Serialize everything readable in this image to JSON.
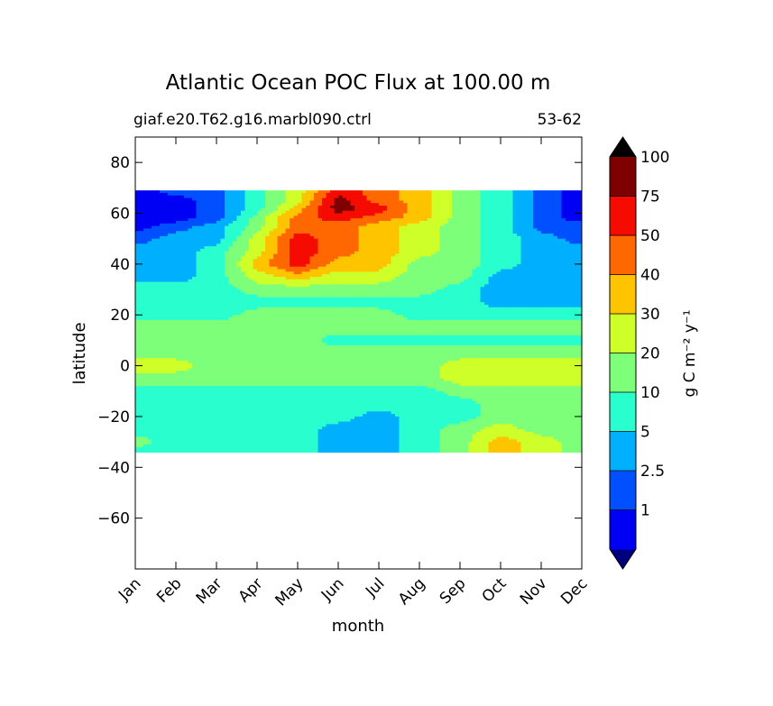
{
  "chart_data": {
    "type": "heatmap",
    "title": "Atlantic Ocean POC Flux at 100.00 m",
    "subtitle_left": "giaf.e20.T62.g16.marbl090.ctrl",
    "subtitle_right": "53-62",
    "xlabel": "month",
    "ylabel": "latitude",
    "x_ticks": [
      "Jan",
      "Feb",
      "Mar",
      "Apr",
      "May",
      "Jun",
      "Jul",
      "Aug",
      "Sep",
      "Oct",
      "Nov",
      "Dec"
    ],
    "x_range": [
      0,
      11
    ],
    "y_ticks": [
      80,
      60,
      40,
      20,
      0,
      -20,
      -40,
      -60
    ],
    "y_range": [
      -80,
      90
    ],
    "data_lat_range": [
      -34,
      69
    ],
    "colorbar": {
      "label": "g C m⁻² y⁻¹",
      "boundaries": [
        0.5,
        1,
        2.5,
        5,
        10,
        20,
        30,
        40,
        50,
        75,
        100,
        125
      ],
      "tick_labels": [
        "1",
        "2.5",
        "5",
        "10",
        "20",
        "30",
        "40",
        "50",
        "75",
        "100"
      ],
      "extend": "both"
    },
    "levels": [
      {
        "name": "lt-1",
        "color": "#00007f"
      },
      {
        "name": "1-2.5",
        "color": "#0000f5"
      },
      {
        "name": "2.5-5",
        "color": "#0050ff"
      },
      {
        "name": "5-10",
        "color": "#00b0ff"
      },
      {
        "name": "10-20",
        "color": "#29ffce"
      },
      {
        "name": "20-30",
        "color": "#7dff7a"
      },
      {
        "name": "30-40",
        "color": "#ceff29"
      },
      {
        "name": "40-50",
        "color": "#ffc400"
      },
      {
        "name": "50-75",
        "color": "#ff6800"
      },
      {
        "name": "75-100",
        "color": "#f50b00"
      },
      {
        "name": "100-125",
        "color": "#7f0000"
      },
      {
        "name": "gt-125",
        "color": "#000000"
      }
    ],
    "field": {
      "lats": [
        69,
        65,
        62,
        58,
        55,
        50,
        45,
        40,
        35,
        30,
        25,
        20,
        15,
        10,
        5,
        0,
        -5,
        -10,
        -15,
        -20,
        -25,
        -30,
        -34
      ],
      "rows": [
        [
          1,
          2,
          2,
          4,
          6,
          9,
          8,
          7,
          5,
          4,
          2,
          1
        ],
        [
          1,
          1,
          2,
          4,
          6,
          10,
          8,
          7,
          5,
          4,
          2,
          1
        ],
        [
          1,
          1,
          2,
          4,
          7,
          10,
          9,
          7,
          5,
          4,
          2,
          1
        ],
        [
          1,
          1,
          2,
          5,
          8,
          9,
          8,
          7,
          5,
          4,
          2,
          1
        ],
        [
          1,
          2,
          3,
          5,
          8,
          8,
          7,
          6,
          5,
          4,
          2,
          2
        ],
        [
          2,
          3,
          3,
          6,
          9,
          8,
          7,
          6,
          5,
          4,
          3,
          2
        ],
        [
          3,
          3,
          4,
          6,
          9,
          8,
          7,
          6,
          5,
          4,
          3,
          3
        ],
        [
          3,
          3,
          4,
          7,
          9,
          7,
          7,
          5,
          5,
          4,
          3,
          3
        ],
        [
          3,
          3,
          4,
          6,
          7,
          6,
          6,
          5,
          5,
          3,
          3,
          3
        ],
        [
          4,
          4,
          4,
          5,
          5,
          5,
          5,
          5,
          4,
          3,
          3,
          3
        ],
        [
          4,
          4,
          4,
          4,
          4,
          4,
          4,
          4,
          4,
          3,
          3,
          3
        ],
        [
          4,
          4,
          4,
          5,
          5,
          5,
          5,
          4,
          4,
          4,
          4,
          4
        ],
        [
          5,
          5,
          5,
          5,
          5,
          5,
          5,
          5,
          5,
          5,
          5,
          5
        ],
        [
          5,
          5,
          5,
          5,
          5,
          4,
          4,
          4,
          4,
          4,
          4,
          4
        ],
        [
          5,
          5,
          5,
          5,
          5,
          5,
          5,
          5,
          5,
          5,
          5,
          5
        ],
        [
          6,
          6,
          5,
          5,
          5,
          5,
          5,
          5,
          6,
          6,
          6,
          6
        ],
        [
          5,
          5,
          5,
          5,
          5,
          5,
          5,
          5,
          6,
          6,
          6,
          6
        ],
        [
          4,
          4,
          4,
          4,
          4,
          4,
          4,
          4,
          5,
          5,
          5,
          5
        ],
        [
          4,
          4,
          4,
          4,
          4,
          4,
          4,
          4,
          4,
          5,
          5,
          5
        ],
        [
          4,
          4,
          4,
          4,
          4,
          4,
          3,
          4,
          4,
          5,
          5,
          5
        ],
        [
          4,
          4,
          4,
          4,
          4,
          3,
          3,
          4,
          5,
          6,
          5,
          5
        ],
        [
          5,
          4,
          4,
          4,
          4,
          3,
          3,
          4,
          5,
          7,
          6,
          5
        ],
        [
          4,
          4,
          4,
          4,
          4,
          3,
          3,
          4,
          5,
          7,
          6,
          5
        ]
      ]
    }
  }
}
